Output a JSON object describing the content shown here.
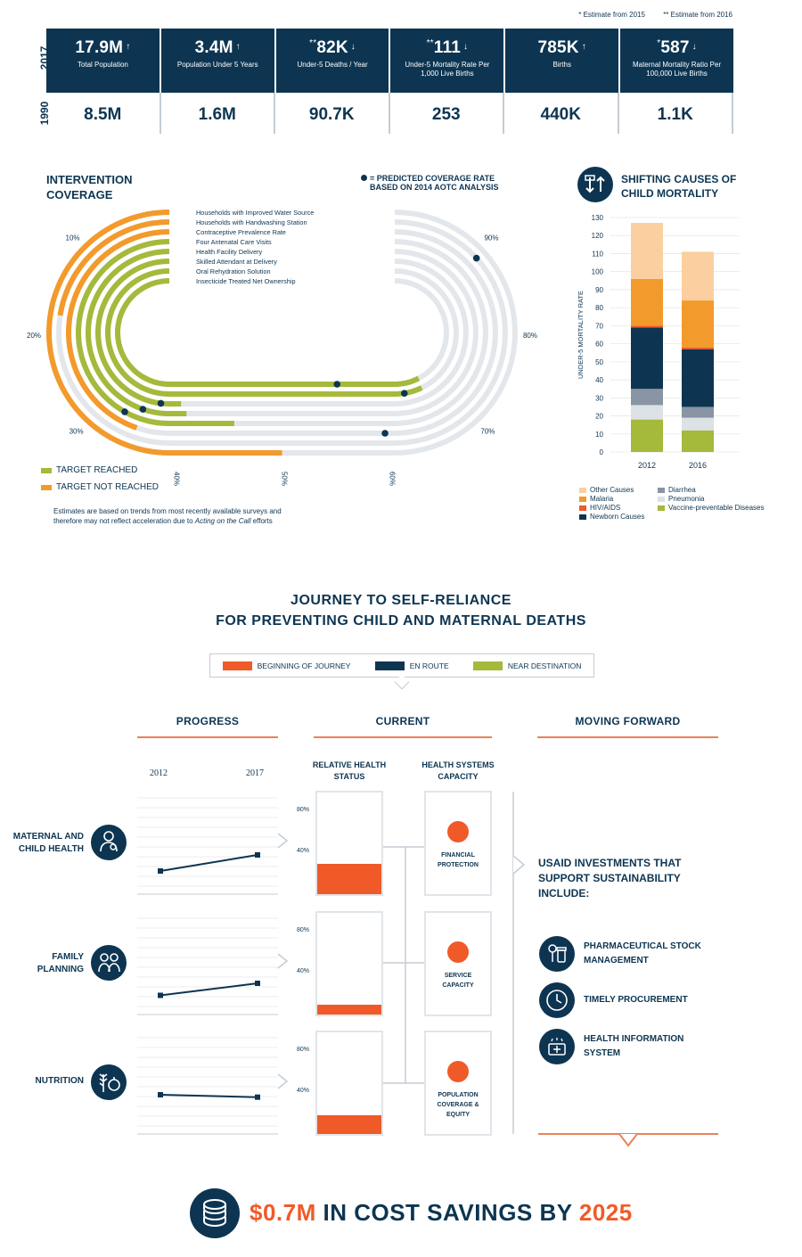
{
  "estimates": {
    "one_star": "* Estimate from 2015",
    "two_star": "** Estimate from 2016"
  },
  "stats": {
    "year_current": "2017",
    "year_base": "1990",
    "items": [
      {
        "mark": "",
        "value": "17.9M",
        "trend": "up",
        "label": "Total Population",
        "old": "8.5M"
      },
      {
        "mark": "",
        "value": "3.4M",
        "trend": "up",
        "label": "Population Under 5 Years",
        "old": "1.6M"
      },
      {
        "mark": "**",
        "value": "82K",
        "trend": "down",
        "label": "Under-5 Deaths / Year",
        "old": "90.7K"
      },
      {
        "mark": "**",
        "value": "111",
        "trend": "down",
        "label": "Under-5 Mortality Rate Per 1,000 Live Births",
        "old": "253"
      },
      {
        "mark": "",
        "value": "785K",
        "trend": "up",
        "label": "Births",
        "old": "440K"
      },
      {
        "mark": "*",
        "value": "587",
        "trend": "down",
        "label": "Maternal Mortality Ratio Per 100,000 Live Births",
        "old": "1.1K"
      }
    ]
  },
  "coverage": {
    "title_line1": "INTERVENTION",
    "title_line2": "COVERAGE",
    "predicted_line1": "= PREDICTED COVERAGE RATE",
    "predicted_line2": "BASED ON 2014 AOTC ANALYSIS",
    "legend_reached": "TARGET REACHED",
    "legend_not_reached": "TARGET NOT REACHED",
    "note_line1": "Estimates are based on trends from most recently available surveys and",
    "note_line2_a": "therefore may not reflect acceleration due to ",
    "note_line2_italic": "Acting on the Call",
    "note_line2_b": " efforts",
    "colors": {
      "reached": "#a5b93b",
      "not_reached": "#f39a2c",
      "track": "#e3e7eb",
      "predicted": "#0d3552"
    }
  },
  "shifting": {
    "title_line1": "SHIFTING CAUSES OF",
    "title_line2": "CHILD MORTALITY",
    "legend": [
      {
        "name": "Other Causes",
        "color": "#fbcf9f"
      },
      {
        "name": "Diarrhea",
        "color": "#8995a4"
      },
      {
        "name": "Malaria",
        "color": "#f39a2c"
      },
      {
        "name": "Pneumonia",
        "color": "#dde2e7"
      },
      {
        "name": "HIV/AIDS",
        "color": "#ef5a28"
      },
      {
        "name": "Vaccine-preventable Diseases",
        "color": "#a5b93b"
      },
      {
        "name": "Newborn Causes",
        "color": "#0d3552"
      }
    ]
  },
  "chart_data": [
    {
      "type": "radial-bar",
      "title": "INTERVENTION COVERAGE",
      "tick_labels": [
        "10%",
        "20%",
        "30%",
        "40%",
        "50%",
        "60%",
        "70%",
        "80%",
        "90%"
      ],
      "series": [
        {
          "name": "Households with Improved Water Source",
          "value": 50,
          "predicted": null,
          "status": "not_reached"
        },
        {
          "name": "Households with Handwashing Station",
          "value": 17,
          "predicted": 90,
          "status": "not_reached"
        },
        {
          "name": "Contraceptive Prevalence Rate",
          "value": 33,
          "predicted": 62,
          "status": "not_reached"
        },
        {
          "name": "Four Antenatal Care Visits",
          "value": 44,
          "predicted": 30,
          "status": "reached"
        },
        {
          "name": "Health Facility Delivery",
          "value": 37,
          "predicted": 31,
          "status": "reached"
        },
        {
          "name": "Skilled Attendant at Delivery",
          "value": 35,
          "predicted": 32,
          "status": "reached"
        },
        {
          "name": "Oral Rehydration Solution",
          "value": 73,
          "predicted": 70,
          "status": "reached"
        },
        {
          "name": "Insecticide Treated Net Ownership",
          "value": 75,
          "predicted": 60,
          "status": "reached"
        }
      ]
    },
    {
      "type": "bar",
      "stacked": true,
      "title": "SHIFTING CAUSES OF CHILD MORTALITY",
      "ylabel": "UNDER-5 MORTALITY RATE",
      "categories": [
        "2012",
        "2016"
      ],
      "ylim": [
        0,
        130
      ],
      "yticks": [
        0,
        10,
        20,
        30,
        40,
        50,
        60,
        70,
        80,
        90,
        100,
        110,
        120,
        130
      ],
      "series": [
        {
          "name": "Vaccine-preventable Diseases",
          "values": [
            18,
            12
          ],
          "color": "#a5b93b"
        },
        {
          "name": "Pneumonia",
          "values": [
            8,
            7
          ],
          "color": "#dde2e7"
        },
        {
          "name": "Diarrhea",
          "values": [
            9,
            6
          ],
          "color": "#8995a4"
        },
        {
          "name": "Newborn Causes",
          "values": [
            34,
            32
          ],
          "color": "#0d3552"
        },
        {
          "name": "HIV/AIDS",
          "values": [
            1,
            1
          ],
          "color": "#ef5a28"
        },
        {
          "name": "Malaria",
          "values": [
            26,
            26
          ],
          "color": "#f39a2c"
        },
        {
          "name": "Other Causes",
          "values": [
            31,
            27
          ],
          "color": "#fbcf9f"
        }
      ]
    },
    {
      "type": "line",
      "title": "PROGRESS",
      "x": [
        "2012",
        "2017"
      ],
      "series": [
        {
          "name": "MATERNAL AND CHILD HEALTH",
          "values": [
            0.2,
            0.4
          ]
        },
        {
          "name": "FAMILY PLANNING",
          "values": [
            0.15,
            0.3
          ]
        },
        {
          "name": "NUTRITION",
          "values": [
            0.4,
            0.37
          ]
        }
      ]
    }
  ],
  "journey": {
    "title_line1": "JOURNEY TO SELF-RELIANCE",
    "title_line2": "FOR PREVENTING CHILD AND MATERNAL DEATHS",
    "stages": [
      {
        "label": "BEGINNING OF JOURNEY",
        "color": "#f05a28"
      },
      {
        "label": "EN ROUTE",
        "color": "#0d3552"
      },
      {
        "label": "NEAR DESTINATION",
        "color": "#a5b93b"
      }
    ],
    "col_progress": "PROGRESS",
    "col_current": "CURRENT",
    "col_forward": "MOVING FORWARD",
    "year_start": "2012",
    "year_end": "2017",
    "sub_status_1": "RELATIVE HEALTH",
    "sub_status_2": "STATUS",
    "sub_capacity_1": "HEALTH SYSTEMS",
    "sub_capacity_2": "CAPACITY",
    "pct_high": "80%",
    "pct_low": "40%",
    "areas": [
      {
        "label_1": "MATERNAL AND",
        "label_2": "CHILD HEALTH",
        "icon": "mother-child-icon",
        "status": 0.3
      },
      {
        "label_1": "FAMILY",
        "label_2": "PLANNING",
        "icon": "family-icon",
        "status": 0.1
      },
      {
        "label_1": "",
        "label_2": "NUTRITION",
        "icon": "wheat-apple-icon",
        "status": 0.18
      }
    ],
    "capacities": [
      {
        "label_1": "FINANCIAL",
        "label_2": "PROTECTION",
        "label_3": "",
        "stage": "BEGINNING OF JOURNEY"
      },
      {
        "label_1": "SERVICE",
        "label_2": "CAPACITY",
        "label_3": "",
        "stage": "BEGINNING OF JOURNEY"
      },
      {
        "label_1": "POPULATION",
        "label_2": "COVERAGE &",
        "label_3": "EQUITY",
        "stage": "BEGINNING OF JOURNEY"
      }
    ],
    "forward_line1": "USAID INVESTMENTS THAT",
    "forward_line2": "SUPPORT SUSTAINABILITY",
    "forward_line3": "INCLUDE:",
    "investments": [
      {
        "label_1": "PHARMACEUTICAL STOCK",
        "label_2": "MANAGEMENT",
        "icon": "pill-bottle-icon"
      },
      {
        "label_1": "TIMELY PROCUREMENT",
        "label_2": "",
        "icon": "clock-icon"
      },
      {
        "label_1": "HEALTH INFORMATION",
        "label_2": "SYSTEM",
        "icon": "medical-kit-icon"
      }
    ]
  },
  "savings": {
    "amount": "$0.7M",
    "middle": " IN COST SAVINGS BY ",
    "year": "2025"
  }
}
